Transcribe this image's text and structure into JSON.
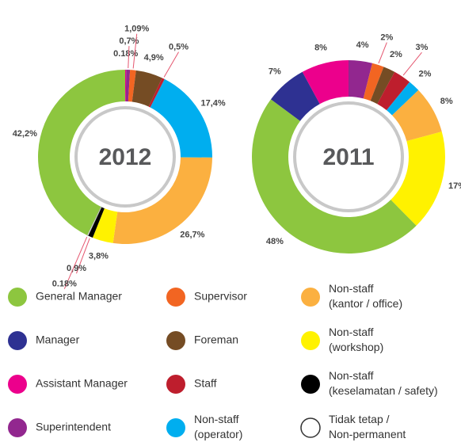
{
  "chart_data": [
    {
      "type": "pie",
      "title": "2012",
      "categories": [
        "Assistant Manager",
        "Superintendent",
        "Supervisor",
        "Foreman",
        "Staff",
        "Non-staff (operator)",
        "Non-staff (kantor / office)",
        "Non-staff (workshop)",
        "Non-staff (keselamatan / safety)",
        "Tidak tetap / Non-permanent",
        "General Manager"
      ],
      "values": [
        0.18,
        0.7,
        1.09,
        4.9,
        0.5,
        17.4,
        26.7,
        3.8,
        0.9,
        0.18,
        42.2
      ],
      "value_labels": [
        "0.18%",
        "0,7%",
        "1,09%",
        "4,9%",
        "0,5%",
        "17,4%",
        "26,7%",
        "3,8%",
        "0,9%",
        "0.18%",
        "42,2%"
      ],
      "colors": [
        "#ec008c",
        "#92278f",
        "#f26522",
        "#754c24",
        "#be1e2d",
        "#00aeef",
        "#fbb040",
        "#fff200",
        "#000000",
        "#ffffff",
        "#8dc63f"
      ]
    },
    {
      "type": "pie",
      "title": "2011",
      "categories": [
        "Superintendent",
        "Supervisor",
        "Foreman",
        "Staff",
        "Non-staff (operator)",
        "Non-staff (kantor / office)",
        "Non-staff (workshop)",
        "General Manager",
        "Manager",
        "Assistant Manager"
      ],
      "values": [
        4,
        2,
        2,
        3,
        2,
        8,
        17,
        48,
        7,
        8
      ],
      "value_labels": [
        "4%",
        "2%",
        "2%",
        "3%",
        "2%",
        "8%",
        "17%",
        "48%",
        "7%",
        "8%"
      ],
      "colors": [
        "#92278f",
        "#f26522",
        "#754c24",
        "#be1e2d",
        "#00aeef",
        "#fbb040",
        "#fff200",
        "#8dc63f",
        "#2e3192",
        "#ec008c"
      ]
    }
  ],
  "legend": [
    {
      "lines": [
        "General Manager"
      ],
      "color": "#8dc63f"
    },
    {
      "lines": [
        "Manager"
      ],
      "color": "#2e3192"
    },
    {
      "lines": [
        "Assistant Manager"
      ],
      "color": "#ec008c"
    },
    {
      "lines": [
        "Superintendent"
      ],
      "color": "#92278f"
    },
    {
      "lines": [
        "Supervisor"
      ],
      "color": "#f26522"
    },
    {
      "lines": [
        "Foreman"
      ],
      "color": "#754c24"
    },
    {
      "lines": [
        "Staff"
      ],
      "color": "#be1e2d"
    },
    {
      "lines": [
        "Non-staff",
        "(operator)"
      ],
      "color": "#00aeef"
    },
    {
      "lines": [
        "Non-staff",
        "(kantor / office)"
      ],
      "color": "#fbb040"
    },
    {
      "lines": [
        "Non-staff",
        "(workshop)"
      ],
      "color": "#fff200"
    },
    {
      "lines": [
        "Non-staff",
        "(keselamatan / safety)"
      ],
      "color": "#000000"
    },
    {
      "lines": [
        "Tidak tetap /",
        "Non-permanent"
      ],
      "color": "#ffffff"
    }
  ]
}
